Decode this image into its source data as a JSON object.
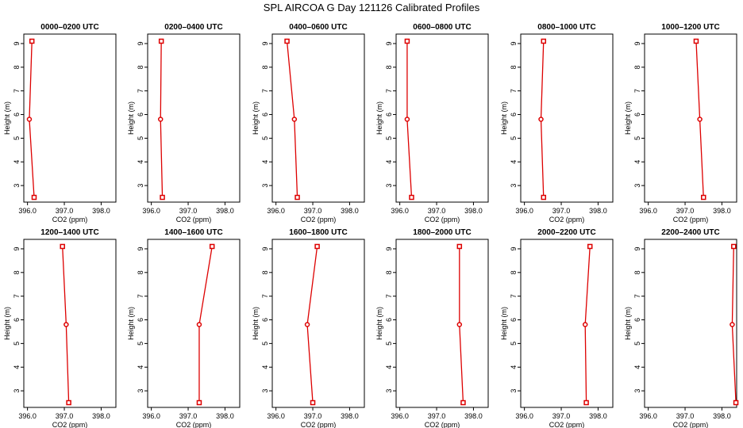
{
  "title": "SPL AIRCOA G  Day 121126  Calibrated Profiles",
  "colors": {
    "series": "#dd0000",
    "axis": "#000000"
  },
  "chart_data": [
    {
      "type": "line",
      "title": "0000–0200 UTC",
      "xlabel": "CO2 (ppm)",
      "ylabel": "Height (m)",
      "xlim": [
        395.9,
        398.4
      ],
      "ylim": [
        2.3,
        9.4
      ],
      "xticks": [
        "396.0",
        "397.0",
        "398.0"
      ],
      "yticks": [
        "3",
        "4",
        "5",
        "6",
        "7",
        "8",
        "9"
      ],
      "grid": false,
      "x": [
        396.12,
        396.05,
        396.18
      ],
      "y": [
        9.1,
        5.8,
        2.5
      ]
    },
    {
      "type": "line",
      "title": "0200–0400 UTC",
      "xlabel": "CO2 (ppm)",
      "ylabel": "Height (m)",
      "xlim": [
        395.9,
        398.4
      ],
      "ylim": [
        2.3,
        9.4
      ],
      "xticks": [
        "396.0",
        "397.0",
        "398.0"
      ],
      "yticks": [
        "3",
        "4",
        "5",
        "6",
        "7",
        "8",
        "9"
      ],
      "grid": false,
      "x": [
        396.27,
        396.25,
        396.3
      ],
      "y": [
        9.1,
        5.8,
        2.5
      ]
    },
    {
      "type": "line",
      "title": "0400–0600 UTC",
      "xlabel": "CO2 (ppm)",
      "ylabel": "Height (m)",
      "xlim": [
        395.9,
        398.4
      ],
      "ylim": [
        2.3,
        9.4
      ],
      "xticks": [
        "396.0",
        "397.0",
        "398.0"
      ],
      "yticks": [
        "3",
        "4",
        "5",
        "6",
        "7",
        "8",
        "9"
      ],
      "grid": false,
      "x": [
        396.3,
        396.5,
        396.58
      ],
      "y": [
        9.1,
        5.8,
        2.5
      ]
    },
    {
      "type": "line",
      "title": "0600–0800 UTC",
      "xlabel": "CO2 (ppm)",
      "ylabel": "Height (m)",
      "xlim": [
        395.9,
        398.4
      ],
      "ylim": [
        2.3,
        9.4
      ],
      "xticks": [
        "396.0",
        "397.0",
        "398.0"
      ],
      "yticks": [
        "3",
        "4",
        "5",
        "6",
        "7",
        "8",
        "9"
      ],
      "grid": false,
      "x": [
        396.2,
        396.2,
        396.32
      ],
      "y": [
        9.1,
        5.8,
        2.5
      ]
    },
    {
      "type": "line",
      "title": "0800–1000 UTC",
      "xlabel": "CO2 (ppm)",
      "ylabel": "Height (m)",
      "xlim": [
        395.9,
        398.4
      ],
      "ylim": [
        2.3,
        9.4
      ],
      "xticks": [
        "396.0",
        "397.0",
        "398.0"
      ],
      "yticks": [
        "3",
        "4",
        "5",
        "6",
        "7",
        "8",
        "9"
      ],
      "grid": false,
      "x": [
        396.52,
        396.45,
        396.52
      ],
      "y": [
        9.1,
        5.8,
        2.5
      ]
    },
    {
      "type": "line",
      "title": "1000–1200 UTC",
      "xlabel": "CO2 (ppm)",
      "ylabel": "Height (m)",
      "xlim": [
        395.9,
        398.4
      ],
      "ylim": [
        2.3,
        9.4
      ],
      "xticks": [
        "396.0",
        "397.0",
        "398.0"
      ],
      "yticks": [
        "3",
        "4",
        "5",
        "6",
        "7",
        "8",
        "9"
      ],
      "grid": false,
      "x": [
        397.3,
        397.4,
        397.5
      ],
      "y": [
        9.1,
        5.8,
        2.5
      ]
    },
    {
      "type": "line",
      "title": "1200–1400 UTC",
      "xlabel": "CO2 (ppm)",
      "ylabel": "Height (m)",
      "xlim": [
        395.9,
        398.4
      ],
      "ylim": [
        2.3,
        9.4
      ],
      "xticks": [
        "396.0",
        "397.0",
        "398.0"
      ],
      "yticks": [
        "3",
        "4",
        "5",
        "6",
        "7",
        "8",
        "9"
      ],
      "grid": false,
      "x": [
        396.95,
        397.05,
        397.12
      ],
      "y": [
        9.1,
        5.8,
        2.5
      ]
    },
    {
      "type": "line",
      "title": "1400–1600 UTC",
      "xlabel": "CO2 (ppm)",
      "ylabel": "Height (m)",
      "xlim": [
        395.9,
        398.4
      ],
      "ylim": [
        2.3,
        9.4
      ],
      "xticks": [
        "396.0",
        "397.0",
        "398.0"
      ],
      "yticks": [
        "3",
        "4",
        "5",
        "6",
        "7",
        "8",
        "9"
      ],
      "grid": false,
      "x": [
        397.65,
        397.3,
        397.3
      ],
      "y": [
        9.1,
        5.8,
        2.5
      ]
    },
    {
      "type": "line",
      "title": "1600–1800 UTC",
      "xlabel": "CO2 (ppm)",
      "ylabel": "Height (m)",
      "xlim": [
        395.9,
        398.4
      ],
      "ylim": [
        2.3,
        9.4
      ],
      "xticks": [
        "396.0",
        "397.0",
        "398.0"
      ],
      "yticks": [
        "3",
        "4",
        "5",
        "6",
        "7",
        "8",
        "9"
      ],
      "grid": false,
      "x": [
        397.12,
        396.85,
        397.0
      ],
      "y": [
        9.1,
        5.8,
        2.5
      ]
    },
    {
      "type": "line",
      "title": "1800–2000 UTC",
      "xlabel": "CO2 (ppm)",
      "ylabel": "Height (m)",
      "xlim": [
        395.9,
        398.4
      ],
      "ylim": [
        2.3,
        9.4
      ],
      "xticks": [
        "396.0",
        "397.0",
        "398.0"
      ],
      "yticks": [
        "3",
        "4",
        "5",
        "6",
        "7",
        "8",
        "9"
      ],
      "grid": false,
      "x": [
        397.62,
        397.62,
        397.72
      ],
      "y": [
        9.1,
        5.8,
        2.5
      ]
    },
    {
      "type": "line",
      "title": "2000–2200 UTC",
      "xlabel": "CO2 (ppm)",
      "ylabel": "Height (m)",
      "xlim": [
        395.9,
        398.4
      ],
      "ylim": [
        2.3,
        9.4
      ],
      "xticks": [
        "396.0",
        "397.0",
        "398.0"
      ],
      "yticks": [
        "3",
        "4",
        "5",
        "6",
        "7",
        "8",
        "9"
      ],
      "grid": false,
      "x": [
        397.78,
        397.65,
        397.68
      ],
      "y": [
        9.1,
        5.8,
        2.5
      ]
    },
    {
      "type": "line",
      "title": "2200–2400 UTC",
      "xlabel": "CO2 (ppm)",
      "ylabel": "Height (m)",
      "xlim": [
        395.9,
        398.4
      ],
      "ylim": [
        2.3,
        9.4
      ],
      "xticks": [
        "396.0",
        "397.0",
        "398.0"
      ],
      "yticks": [
        "3",
        "4",
        "5",
        "6",
        "7",
        "8",
        "9"
      ],
      "grid": false,
      "x": [
        398.32,
        398.28,
        398.38
      ],
      "y": [
        9.1,
        5.8,
        2.5
      ]
    }
  ]
}
